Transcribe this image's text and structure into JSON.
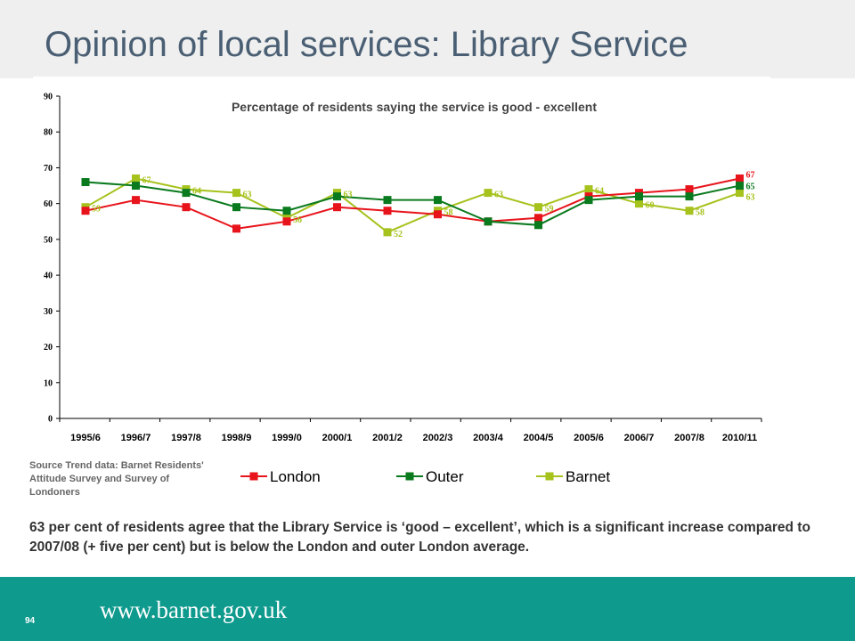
{
  "page": {
    "title": "Opinion of local services: Library Service",
    "source_note": "Source Trend data:  Barnet Residents' Attitude  Survey and Survey of Londoners",
    "summary": "63 per cent of residents agree that the Library Service is ‘good – excellent’, which is a significant increase compared to 2007/08 (+ five per cent) but is below the London and outer London average.",
    "page_number": "94",
    "footer_url": "www.barnet.gov.uk"
  },
  "chart_data": {
    "type": "line",
    "title": "Percentage of residents saying the service is good - excellent",
    "categories": [
      "1995/6",
      "1996/7",
      "1997/8",
      "1998/9",
      "1999/0",
      "2000/1",
      "2001/2",
      "2002/3",
      "2003/4",
      "2004/5",
      "2005/6",
      "2006/7",
      "2007/8",
      "2010/11"
    ],
    "ylim": [
      0,
      90
    ],
    "yticks": [
      0,
      10,
      20,
      30,
      40,
      50,
      60,
      70,
      80,
      90
    ],
    "grid": false,
    "legend_position": "bottom",
    "series": [
      {
        "name": "London",
        "color": "#e8141c",
        "values": [
          58,
          61,
          59,
          53,
          55,
          59,
          58,
          57,
          55,
          56,
          62,
          63,
          64,
          67
        ],
        "labels": [
          null,
          null,
          null,
          null,
          null,
          null,
          null,
          null,
          null,
          null,
          null,
          null,
          null,
          "67"
        ]
      },
      {
        "name": "Outer",
        "color": "#0a7a1e",
        "values": [
          66,
          65,
          63,
          59,
          58,
          62,
          61,
          61,
          55,
          54,
          61,
          62,
          62,
          65
        ],
        "labels": [
          null,
          null,
          null,
          null,
          null,
          null,
          null,
          null,
          null,
          null,
          null,
          null,
          null,
          "65"
        ]
      },
      {
        "name": "Barnet",
        "color": "#a6c21c",
        "values": [
          59,
          67,
          64,
          63,
          56,
          63,
          52,
          58,
          63,
          59,
          64,
          60,
          58,
          63
        ],
        "labels": [
          "59",
          "67",
          "64",
          "63",
          "56",
          "63",
          "52",
          "58",
          "63",
          "59",
          "64",
          "60",
          "58",
          "63"
        ]
      }
    ]
  }
}
